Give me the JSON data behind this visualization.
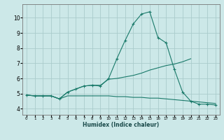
{
  "xlabel": "Humidex (Indice chaleur)",
  "ylabel": "",
  "bg_color": "#cce8e8",
  "grid_color": "#aacccc",
  "line_color": "#1a7a6a",
  "x_ticks": [
    0,
    1,
    2,
    3,
    4,
    5,
    6,
    7,
    8,
    9,
    10,
    11,
    12,
    13,
    14,
    15,
    16,
    17,
    18,
    19,
    20,
    21,
    22,
    23
  ],
  "y_ticks": [
    4,
    5,
    6,
    7,
    8,
    9,
    10
  ],
  "ylim": [
    3.6,
    10.9
  ],
  "xlim": [
    -0.5,
    23.5
  ],
  "line1_x": [
    0,
    1,
    2,
    3,
    4,
    5,
    6,
    7,
    8,
    9,
    10,
    11,
    12,
    13,
    14,
    15,
    16,
    17,
    18,
    19,
    20,
    21,
    22,
    23
  ],
  "line1_y": [
    4.9,
    4.85,
    4.85,
    4.85,
    4.65,
    5.1,
    5.3,
    5.5,
    5.55,
    5.5,
    6.0,
    7.3,
    8.5,
    9.6,
    10.25,
    10.4,
    8.7,
    8.35,
    6.6,
    5.1,
    4.5,
    4.3,
    4.3,
    4.25
  ],
  "line2_x": [
    0,
    1,
    2,
    3,
    4,
    5,
    6,
    7,
    8,
    9,
    10,
    11,
    12,
    13,
    14,
    15,
    16,
    17,
    18,
    19,
    20
  ],
  "line2_y": [
    4.9,
    4.85,
    4.85,
    4.85,
    4.65,
    5.1,
    5.3,
    5.5,
    5.55,
    5.55,
    5.95,
    6.0,
    6.1,
    6.2,
    6.35,
    6.55,
    6.7,
    6.85,
    6.95,
    7.1,
    7.3
  ],
  "line3_x": [
    0,
    1,
    2,
    3,
    4,
    5,
    6,
    7,
    8,
    9,
    10,
    11,
    12,
    13,
    14,
    15,
    16,
    17,
    18,
    19,
    20,
    21,
    22,
    23
  ],
  "line3_y": [
    4.9,
    4.85,
    4.85,
    4.85,
    4.65,
    4.85,
    4.85,
    4.85,
    4.85,
    4.85,
    4.85,
    4.8,
    4.8,
    4.75,
    4.75,
    4.7,
    4.7,
    4.65,
    4.6,
    4.55,
    4.5,
    4.45,
    4.4,
    4.35
  ]
}
